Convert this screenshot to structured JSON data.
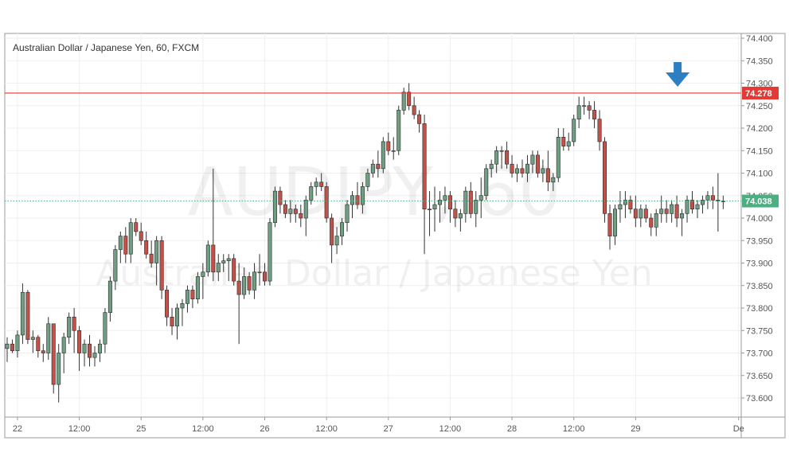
{
  "chart_data": {
    "type": "candlestick",
    "title": "Australian Dollar / Japanese Yen, 60, FXCM",
    "watermark": {
      "symbol": "AUDJPY, 60",
      "name": "Australian Dollar / Japanese Yen"
    },
    "y_axis": {
      "range": [
        73.555,
        74.41
      ],
      "ticks": [
        "74.400",
        "74.350",
        "74.300",
        "74.250",
        "74.200",
        "74.150",
        "74.100",
        "74.050",
        "74.000",
        "73.950",
        "73.900",
        "73.850",
        "73.800",
        "73.750",
        "73.700",
        "73.650",
        "73.600"
      ]
    },
    "x_axis": {
      "ticks": [
        {
          "label": "22",
          "bar": 2
        },
        {
          "label": "12:00",
          "bar": 14
        },
        {
          "label": "25",
          "bar": 26
        },
        {
          "label": "12:00",
          "bar": 38
        },
        {
          "label": "26",
          "bar": 50
        },
        {
          "label": "12:00",
          "bar": 62
        },
        {
          "label": "27",
          "bar": 74
        },
        {
          "label": "12:00",
          "bar": 86
        },
        {
          "label": "28",
          "bar": 98
        },
        {
          "label": "12:00",
          "bar": 110
        },
        {
          "label": "29",
          "bar": 122
        },
        {
          "label": "De",
          "bar": 142
        }
      ]
    },
    "resistance_line": {
      "value": 74.278,
      "label": "74.278",
      "color": "#e53935"
    },
    "last_price": {
      "value": 74.038,
      "label": "74.038",
      "color": "#4caf82"
    },
    "annotation": {
      "type": "arrow-down",
      "bar": 130,
      "color": "#2d7fc4"
    },
    "colors": {
      "up": "#6f9e82",
      "down": "#c0524a",
      "wick": "#333333"
    },
    "candles": [
      [
        73.71,
        73.735,
        73.68,
        73.72
      ],
      [
        73.72,
        73.73,
        73.7,
        73.705
      ],
      [
        73.705,
        73.75,
        73.69,
        73.74
      ],
      [
        73.74,
        73.855,
        73.72,
        73.835
      ],
      [
        73.835,
        73.84,
        73.72,
        73.73
      ],
      [
        73.73,
        73.75,
        73.7,
        73.735
      ],
      [
        73.735,
        73.74,
        73.69,
        73.705
      ],
      [
        73.705,
        73.72,
        73.68,
        73.7
      ],
      [
        73.7,
        73.78,
        73.685,
        73.765
      ],
      [
        73.765,
        73.765,
        73.61,
        73.63
      ],
      [
        73.63,
        73.72,
        73.59,
        73.7
      ],
      [
        73.7,
        73.745,
        73.655,
        73.735
      ],
      [
        73.735,
        73.79,
        73.72,
        73.78
      ],
      [
        73.78,
        73.8,
        73.7,
        73.75
      ],
      [
        73.75,
        73.76,
        73.66,
        73.7
      ],
      [
        73.7,
        73.73,
        73.67,
        73.72
      ],
      [
        73.72,
        73.74,
        73.67,
        73.69
      ],
      [
        73.69,
        73.715,
        73.67,
        73.7
      ],
      [
        73.7,
        73.73,
        73.68,
        73.72
      ],
      [
        73.72,
        73.8,
        73.7,
        73.79
      ],
      [
        73.79,
        73.87,
        73.77,
        73.86
      ],
      [
        73.86,
        73.94,
        73.84,
        73.93
      ],
      [
        73.93,
        73.97,
        73.9,
        73.96
      ],
      [
        73.96,
        73.98,
        73.9,
        73.92
      ],
      [
        73.92,
        74.0,
        73.9,
        73.99
      ],
      [
        73.99,
        74.0,
        73.96,
        73.97
      ],
      [
        73.97,
        73.99,
        73.94,
        73.95
      ],
      [
        73.95,
        73.97,
        73.91,
        73.92
      ],
      [
        73.92,
        73.95,
        73.89,
        73.9
      ],
      [
        73.9,
        73.96,
        73.85,
        73.95
      ],
      [
        73.95,
        73.96,
        73.82,
        73.84
      ],
      [
        73.84,
        73.85,
        73.76,
        73.78
      ],
      [
        73.78,
        73.8,
        73.74,
        73.76
      ],
      [
        73.76,
        73.81,
        73.73,
        73.8
      ],
      [
        73.8,
        73.82,
        73.76,
        73.81
      ],
      [
        73.81,
        73.85,
        73.79,
        73.84
      ],
      [
        73.84,
        73.85,
        73.8,
        73.82
      ],
      [
        73.82,
        73.88,
        73.81,
        73.87
      ],
      [
        73.87,
        73.9,
        73.82,
        73.88
      ],
      [
        73.88,
        73.95,
        73.87,
        73.94
      ],
      [
        73.94,
        74.11,
        73.86,
        73.88
      ],
      [
        73.88,
        73.92,
        73.86,
        73.9
      ],
      [
        73.9,
        73.92,
        73.88,
        73.905
      ],
      [
        73.905,
        73.92,
        73.86,
        73.91
      ],
      [
        73.91,
        73.92,
        73.85,
        73.86
      ],
      [
        73.86,
        73.9,
        73.72,
        73.83
      ],
      [
        73.83,
        73.89,
        73.82,
        73.87
      ],
      [
        73.87,
        73.88,
        73.83,
        73.84
      ],
      [
        73.84,
        73.9,
        73.82,
        73.88
      ],
      [
        73.88,
        73.92,
        73.85,
        73.88
      ],
      [
        73.88,
        73.9,
        73.85,
        73.86
      ],
      [
        73.86,
        74.0,
        73.85,
        73.99
      ],
      [
        73.99,
        74.07,
        73.98,
        74.06
      ],
      [
        74.06,
        74.07,
        74.01,
        74.03
      ],
      [
        74.03,
        74.04,
        74.0,
        74.01
      ],
      [
        74.01,
        74.04,
        73.99,
        74.02
      ],
      [
        74.02,
        74.03,
        73.99,
        74.01
      ],
      [
        74.01,
        74.03,
        73.98,
        74.0
      ],
      [
        74.0,
        74.05,
        73.96,
        74.04
      ],
      [
        74.04,
        74.08,
        74.03,
        74.07
      ],
      [
        74.07,
        74.09,
        74.05,
        74.08
      ],
      [
        74.08,
        74.1,
        74.06,
        74.07
      ],
      [
        74.07,
        74.08,
        73.99,
        74.0
      ],
      [
        74.0,
        74.01,
        73.9,
        73.94
      ],
      [
        73.94,
        73.98,
        73.92,
        73.96
      ],
      [
        73.96,
        74.0,
        73.94,
        73.99
      ],
      [
        73.99,
        74.04,
        73.97,
        74.03
      ],
      [
        74.03,
        74.06,
        74.0,
        74.05
      ],
      [
        74.05,
        74.08,
        74.02,
        74.03
      ],
      [
        74.03,
        74.08,
        74.01,
        74.07
      ],
      [
        74.07,
        74.11,
        74.06,
        74.1
      ],
      [
        74.1,
        74.13,
        74.09,
        74.12
      ],
      [
        74.12,
        74.15,
        74.09,
        74.11
      ],
      [
        74.11,
        74.18,
        74.1,
        74.17
      ],
      [
        74.17,
        74.19,
        74.14,
        74.15
      ],
      [
        74.15,
        74.18,
        74.13,
        74.15
      ],
      [
        74.15,
        74.25,
        74.14,
        74.24
      ],
      [
        74.24,
        74.29,
        74.23,
        74.28
      ],
      [
        74.28,
        74.3,
        74.24,
        74.25
      ],
      [
        74.25,
        74.27,
        74.22,
        74.23
      ],
      [
        74.23,
        74.24,
        74.19,
        74.21
      ],
      [
        74.21,
        74.23,
        73.92,
        74.02
      ],
      [
        74.02,
        74.06,
        73.96,
        74.02
      ],
      [
        74.02,
        74.07,
        73.97,
        74.03
      ],
      [
        74.03,
        74.06,
        73.99,
        74.04
      ],
      [
        74.04,
        74.07,
        74.01,
        74.05
      ],
      [
        74.05,
        74.06,
        73.99,
        74.02
      ],
      [
        74.02,
        74.04,
        73.98,
        74.0
      ],
      [
        74.0,
        74.02,
        73.97,
        74.01
      ],
      [
        74.01,
        74.07,
        73.99,
        74.06
      ],
      [
        74.06,
        74.08,
        74.0,
        74.01
      ],
      [
        74.01,
        74.06,
        73.98,
        74.04
      ],
      [
        74.04,
        74.09,
        74.0,
        74.05
      ],
      [
        74.05,
        74.12,
        74.04,
        74.11
      ],
      [
        74.11,
        74.13,
        74.09,
        74.12
      ],
      [
        74.12,
        74.16,
        74.1,
        74.15
      ],
      [
        74.15,
        74.16,
        74.11,
        74.15
      ],
      [
        74.15,
        74.17,
        74.11,
        74.12
      ],
      [
        74.12,
        74.14,
        74.09,
        74.1
      ],
      [
        74.1,
        74.12,
        74.08,
        74.11
      ],
      [
        74.11,
        74.13,
        74.09,
        74.1
      ],
      [
        74.1,
        74.14,
        74.08,
        74.12
      ],
      [
        74.12,
        74.15,
        74.1,
        74.14
      ],
      [
        74.14,
        74.15,
        74.09,
        74.1
      ],
      [
        74.1,
        74.13,
        74.08,
        74.11
      ],
      [
        74.11,
        74.15,
        74.06,
        74.08
      ],
      [
        74.08,
        74.1,
        74.06,
        74.09
      ],
      [
        74.09,
        74.2,
        74.08,
        74.18
      ],
      [
        74.18,
        74.2,
        74.15,
        74.16
      ],
      [
        74.16,
        74.19,
        74.15,
        74.17
      ],
      [
        74.17,
        74.23,
        74.16,
        74.22
      ],
      [
        74.22,
        74.27,
        74.2,
        74.25
      ],
      [
        74.25,
        74.27,
        74.23,
        74.25
      ],
      [
        74.25,
        74.26,
        74.22,
        74.24
      ],
      [
        74.24,
        74.26,
        74.2,
        74.22
      ],
      [
        74.22,
        74.24,
        74.15,
        74.17
      ],
      [
        74.17,
        74.18,
        73.99,
        74.01
      ],
      [
        74.01,
        74.03,
        73.93,
        73.96
      ],
      [
        73.96,
        74.03,
        73.94,
        74.02
      ],
      [
        74.02,
        74.06,
        73.99,
        74.03
      ],
      [
        74.03,
        74.06,
        74.0,
        74.04
      ],
      [
        74.04,
        74.05,
        74.01,
        74.02
      ],
      [
        74.02,
        74.05,
        73.98,
        74.0
      ],
      [
        74.0,
        74.03,
        73.98,
        74.02
      ],
      [
        74.02,
        74.03,
        73.99,
        74.0
      ],
      [
        74.0,
        74.01,
        73.96,
        73.98
      ],
      [
        73.98,
        74.02,
        73.96,
        74.01
      ],
      [
        74.01,
        74.05,
        73.99,
        74.02
      ],
      [
        74.02,
        74.04,
        73.99,
        74.01
      ],
      [
        74.01,
        74.04,
        73.99,
        74.03
      ],
      [
        74.03,
        74.05,
        73.98,
        74.0
      ],
      [
        74.0,
        74.02,
        73.96,
        74.01
      ],
      [
        74.01,
        74.05,
        73.99,
        74.04
      ],
      [
        74.04,
        74.06,
        74.01,
        74.02
      ],
      [
        74.02,
        74.04,
        74.0,
        74.03
      ],
      [
        74.03,
        74.05,
        74.01,
        74.04
      ],
      [
        74.04,
        74.06,
        74.02,
        74.05
      ],
      [
        74.05,
        74.07,
        74.02,
        74.04
      ],
      [
        74.04,
        74.1,
        73.97,
        74.038
      ],
      [
        74.038,
        74.05,
        74.02,
        74.038
      ]
    ]
  }
}
